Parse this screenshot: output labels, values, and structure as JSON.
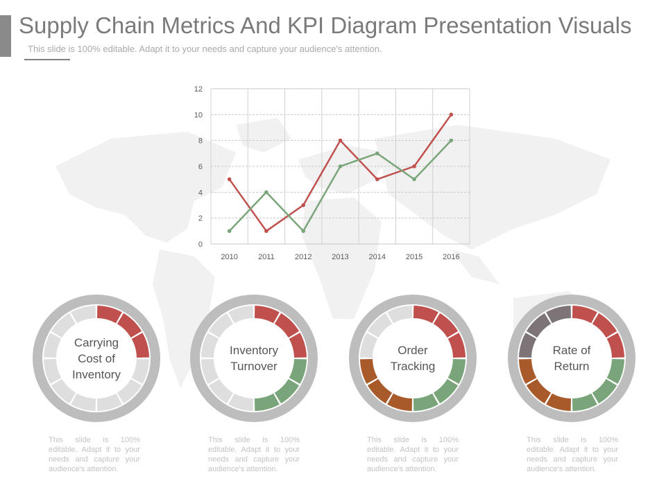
{
  "header": {
    "title": "Supply Chain Metrics And KPI Diagram Presentation Visuals",
    "subtitle": "This slide is 100% editable. Adapt it to your needs and capture your audience's attention."
  },
  "colors": {
    "red": "#c0504d",
    "green": "#7aa57a",
    "brown": "#a85a2a",
    "purple_gray": "#7d7478",
    "ring_gray": "#bdbdbd",
    "seg_light": "#dedede",
    "map_gray": "#f1f1f1"
  },
  "chart_data": {
    "type": "line",
    "x": [
      "2010",
      "2011",
      "2012",
      "2013",
      "2014",
      "2015",
      "2016"
    ],
    "yticks": [
      "0",
      "2",
      "4",
      "6",
      "8",
      "10",
      "12"
    ],
    "ylim": [
      0,
      12
    ],
    "grid": true,
    "legend": "none",
    "series": [
      {
        "name": "Red series",
        "color": "#c0504d",
        "values": [
          5,
          1,
          3,
          8,
          5,
          6,
          10
        ]
      },
      {
        "name": "Green series",
        "color": "#7aa57a",
        "values": [
          1,
          4,
          1,
          6,
          7,
          5,
          8
        ]
      }
    ]
  },
  "kpis": [
    {
      "label_lines": [
        "Carrying",
        "Cost of",
        "Inventory"
      ],
      "segments": [
        "red",
        "red",
        "red",
        "light",
        "light",
        "light",
        "light",
        "light",
        "light",
        "light",
        "light",
        "light"
      ],
      "description": "This slide is 100% editable. Adapt it to your needs and capture your audience's attention."
    },
    {
      "label_lines": [
        "Inventory",
        "Turnover"
      ],
      "segments": [
        "red",
        "red",
        "red",
        "green",
        "green",
        "green",
        "light",
        "light",
        "light",
        "light",
        "light",
        "light"
      ],
      "description": "This slide is 100% editable. Adapt it to your needs and capture your audience's attention."
    },
    {
      "label_lines": [
        "Order",
        "Tracking"
      ],
      "segments": [
        "red",
        "red",
        "red",
        "green",
        "green",
        "green",
        "brown",
        "brown",
        "brown",
        "light",
        "light",
        "light"
      ],
      "description": "This slide is 100% editable. Adapt it to your needs and capture your audience's attention."
    },
    {
      "label_lines": [
        "Rate of",
        "Return"
      ],
      "segments": [
        "red",
        "red",
        "red",
        "green",
        "green",
        "green",
        "brown",
        "brown",
        "brown",
        "purple",
        "purple",
        "purple"
      ],
      "description": "This slide is 100% editable. Adapt it to your needs and capture your audience's attention."
    }
  ]
}
